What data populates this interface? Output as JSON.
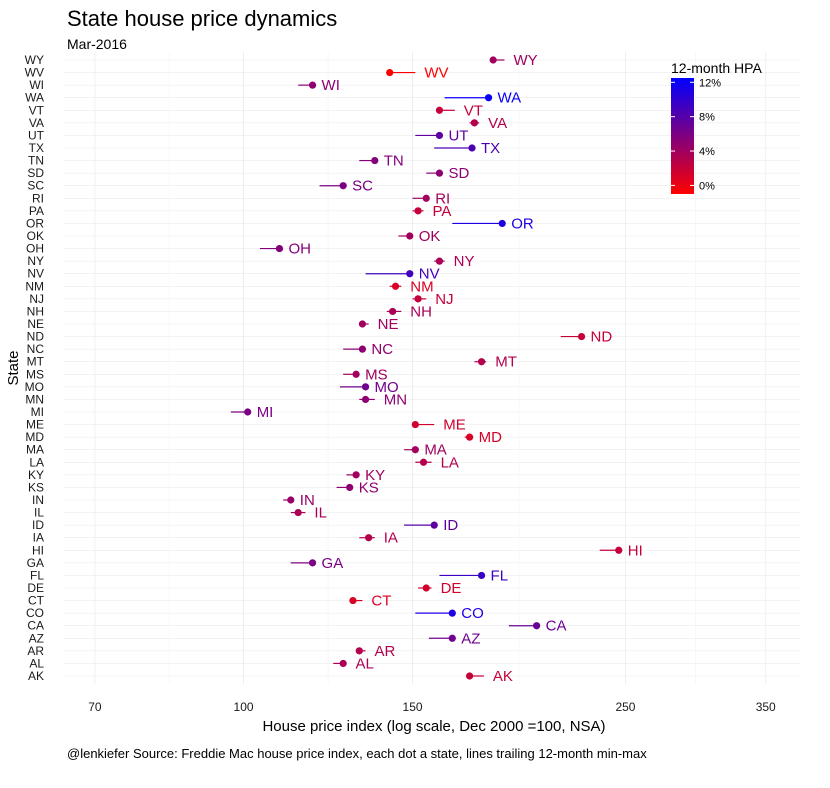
{
  "chart_data": {
    "type": "scatter",
    "title": "State house price dynamics",
    "subtitle": "Mar-2016",
    "xlabel": "House price index (log scale, Dec 2000 =100, NSA)",
    "ylabel": "State",
    "caption": "@lenkiefer Source: Freddie Mac house price index, each dot a state, lines trailing 12-month min-max",
    "x_scale": "log",
    "xlim": [
      65,
      380
    ],
    "x_ticks": [
      70,
      100,
      150,
      250,
      350
    ],
    "grid": true,
    "legend": {
      "title": "12-month HPA",
      "position": "top-right",
      "ticks": [
        "12%",
        "8%",
        "4%",
        "0%"
      ],
      "tick_values": [
        12,
        8,
        4,
        0
      ],
      "range": [
        -1,
        12.5
      ],
      "colors": [
        "#FF0000",
        "#0000FF"
      ]
    },
    "states": [
      {
        "state": "WY",
        "hpi": 182,
        "min": 182,
        "max": 187,
        "hpa": 4
      },
      {
        "state": "WV",
        "hpi": 142,
        "min": 142,
        "max": 151,
        "hpa": -1
      },
      {
        "state": "WI",
        "hpi": 118,
        "min": 114,
        "max": 118,
        "hpa": 5
      },
      {
        "state": "WA",
        "hpi": 180,
        "min": 162,
        "max": 180,
        "hpa": 12
      },
      {
        "state": "VT",
        "hpi": 160,
        "min": 160,
        "max": 166,
        "hpa": 2
      },
      {
        "state": "VA",
        "hpi": 174,
        "min": 172,
        "max": 176,
        "hpa": 3
      },
      {
        "state": "UT",
        "hpi": 160,
        "min": 151,
        "max": 160,
        "hpa": 7.5
      },
      {
        "state": "TX",
        "hpi": 173,
        "min": 158,
        "max": 173,
        "hpa": 8.5
      },
      {
        "state": "TN",
        "hpi": 137,
        "min": 132,
        "max": 137,
        "hpa": 5.5
      },
      {
        "state": "SD",
        "hpi": 160,
        "min": 155,
        "max": 160,
        "hpa": 5
      },
      {
        "state": "SC",
        "hpi": 127,
        "min": 120,
        "max": 127,
        "hpa": 6
      },
      {
        "state": "RI",
        "hpi": 155,
        "min": 150,
        "max": 155,
        "hpa": 4
      },
      {
        "state": "PA",
        "hpi": 152,
        "min": 150,
        "max": 154,
        "hpa": 2
      },
      {
        "state": "OR",
        "hpi": 186,
        "min": 165,
        "max": 186,
        "hpa": 11
      },
      {
        "state": "OK",
        "hpi": 149,
        "min": 145,
        "max": 149,
        "hpa": 4
      },
      {
        "state": "OH",
        "hpi": 109,
        "min": 104,
        "max": 109,
        "hpa": 5.5
      },
      {
        "state": "NY",
        "hpi": 160,
        "min": 158,
        "max": 162,
        "hpa": 3.5
      },
      {
        "state": "NV",
        "hpi": 149,
        "min": 134,
        "max": 149,
        "hpa": 9
      },
      {
        "state": "NM",
        "hpi": 144,
        "min": 142,
        "max": 146,
        "hpa": 1
      },
      {
        "state": "NJ",
        "hpi": 152,
        "min": 150,
        "max": 155,
        "hpa": 2
      },
      {
        "state": "NH",
        "hpi": 143,
        "min": 141,
        "max": 146,
        "hpa": 3.5
      },
      {
        "state": "NE",
        "hpi": 133,
        "min": 133,
        "max": 135,
        "hpa": 4
      },
      {
        "state": "ND",
        "hpi": 225,
        "min": 214,
        "max": 225,
        "hpa": 2
      },
      {
        "state": "NC",
        "hpi": 133,
        "min": 127,
        "max": 133,
        "hpa": 5
      },
      {
        "state": "MT",
        "hpi": 177,
        "min": 174,
        "max": 179,
        "hpa": 3
      },
      {
        "state": "MS",
        "hpi": 131,
        "min": 127,
        "max": 131,
        "hpa": 4
      },
      {
        "state": "MO",
        "hpi": 134,
        "min": 126,
        "max": 134,
        "hpa": 6.5
      },
      {
        "state": "MN",
        "hpi": 134,
        "min": 132,
        "max": 137,
        "hpa": 5
      },
      {
        "state": "MI",
        "hpi": 101,
        "min": 97,
        "max": 101,
        "hpa": 6
      },
      {
        "state": "ME",
        "hpi": 151,
        "min": 151,
        "max": 158,
        "hpa": 1.5
      },
      {
        "state": "MD",
        "hpi": 172,
        "min": 170,
        "max": 172,
        "hpa": 1
      },
      {
        "state": "MA",
        "hpi": 151,
        "min": 147,
        "max": 151,
        "hpa": 4
      },
      {
        "state": "LA",
        "hpi": 154,
        "min": 151,
        "max": 157,
        "hpa": 3
      },
      {
        "state": "KY",
        "hpi": 131,
        "min": 128,
        "max": 131,
        "hpa": 4
      },
      {
        "state": "KS",
        "hpi": 129,
        "min": 125,
        "max": 129,
        "hpa": 5
      },
      {
        "state": "IN",
        "hpi": 112,
        "min": 110,
        "max": 112,
        "hpa": 4.5
      },
      {
        "state": "IL",
        "hpi": 114,
        "min": 112,
        "max": 116,
        "hpa": 3.5
      },
      {
        "state": "ID",
        "hpi": 158,
        "min": 147,
        "max": 158,
        "hpa": 7.5
      },
      {
        "state": "IA",
        "hpi": 135,
        "min": 132,
        "max": 137,
        "hpa": 3
      },
      {
        "state": "HI",
        "hpi": 246,
        "min": 235,
        "max": 246,
        "hpa": 2
      },
      {
        "state": "GA",
        "hpi": 118,
        "min": 112,
        "max": 118,
        "hpa": 6
      },
      {
        "state": "FL",
        "hpi": 177,
        "min": 160,
        "max": 177,
        "hpa": 9.5
      },
      {
        "state": "DE",
        "hpi": 155,
        "min": 152,
        "max": 157,
        "hpa": 1.5
      },
      {
        "state": "CT",
        "hpi": 130,
        "min": 130,
        "max": 133,
        "hpa": 1
      },
      {
        "state": "CO",
        "hpi": 165,
        "min": 151,
        "max": 165,
        "hpa": 11
      },
      {
        "state": "CA",
        "hpi": 202,
        "min": 189,
        "max": 202,
        "hpa": 7
      },
      {
        "state": "AZ",
        "hpi": 165,
        "min": 156,
        "max": 165,
        "hpa": 6.5
      },
      {
        "state": "AR",
        "hpi": 132,
        "min": 132,
        "max": 134,
        "hpa": 3
      },
      {
        "state": "AL",
        "hpi": 127,
        "min": 124,
        "max": 128,
        "hpa": 3.5
      },
      {
        "state": "AK",
        "hpi": 172,
        "min": 172,
        "max": 178,
        "hpa": 2
      }
    ]
  }
}
